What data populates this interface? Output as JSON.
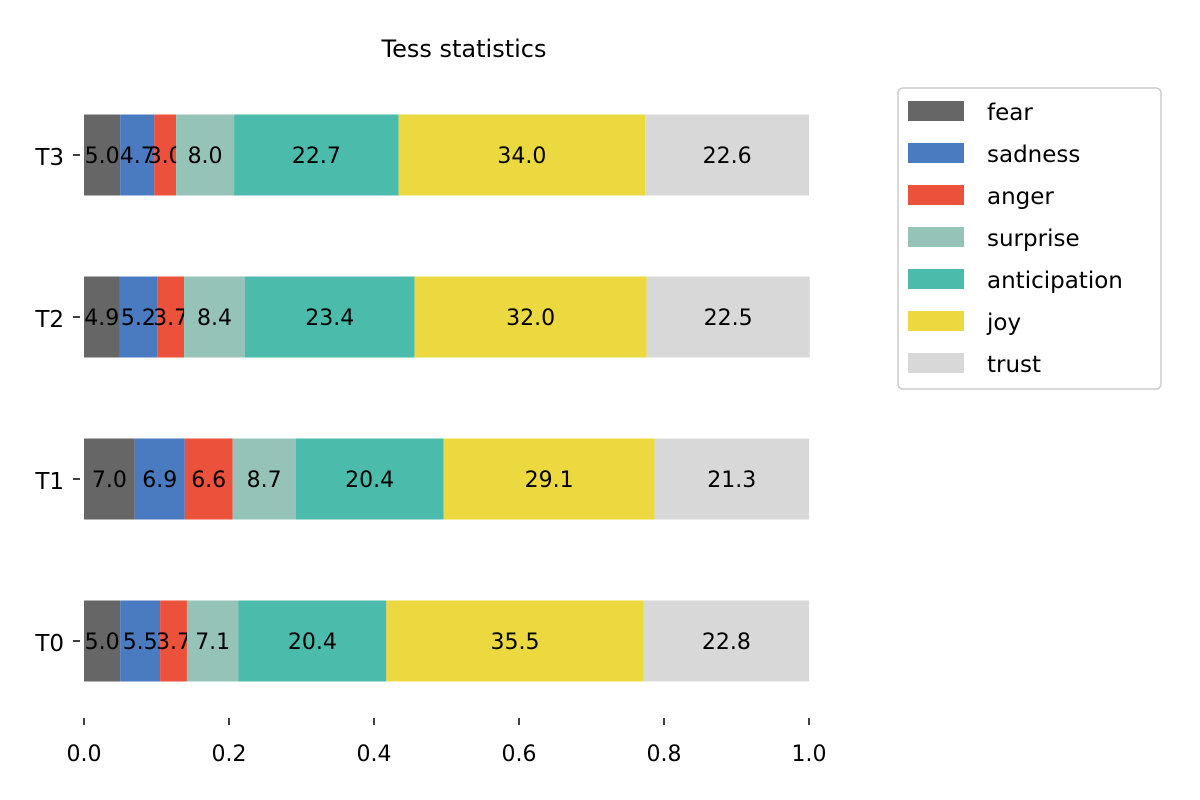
{
  "chart_data": {
    "type": "bar",
    "orientation": "horizontal",
    "stacked": true,
    "title": "Tess statistics",
    "xlabel": "",
    "ylabel": "",
    "xlim": [
      0,
      1
    ],
    "x_ticks": [
      "0.0",
      "0.2",
      "0.4",
      "0.6",
      "0.8",
      "1.0"
    ],
    "categories": [
      "T0",
      "T1",
      "T2",
      "T3"
    ],
    "series": [
      {
        "name": "fear",
        "color": "#666666",
        "values": [
          0.05,
          0.07,
          0.049,
          0.05
        ],
        "labels": [
          "5.0",
          "7.0",
          "4.9",
          "5.0"
        ]
      },
      {
        "name": "sadness",
        "color": "#4a7bc1",
        "values": [
          0.055,
          0.069,
          0.052,
          0.047
        ],
        "labels": [
          "5.5",
          "6.9",
          "5.2",
          "4.7"
        ]
      },
      {
        "name": "anger",
        "color": "#ec513b",
        "values": [
          0.037,
          0.066,
          0.037,
          0.03
        ],
        "labels": [
          "3.7",
          "6.6",
          "3.7",
          "3.0"
        ]
      },
      {
        "name": "surprise",
        "color": "#96c3b8",
        "values": [
          0.071,
          0.087,
          0.084,
          0.08
        ],
        "labels": [
          "7.1",
          "8.7",
          "8.4",
          "8.0"
        ]
      },
      {
        "name": "anticipation",
        "color": "#4bbbab",
        "values": [
          0.204,
          0.204,
          0.234,
          0.227
        ],
        "labels": [
          "20.4",
          "20.4",
          "23.4",
          "22.7"
        ]
      },
      {
        "name": "joy",
        "color": "#ecd93f",
        "values": [
          0.355,
          0.291,
          0.32,
          0.34
        ],
        "labels": [
          "35.5",
          "29.1",
          "32.0",
          "34.0"
        ]
      },
      {
        "name": "trust",
        "color": "#d8d8d8",
        "values": [
          0.228,
          0.213,
          0.225,
          0.226
        ],
        "labels": [
          "22.8",
          "21.3",
          "22.5",
          "22.6"
        ]
      }
    ],
    "legend_position": "outside-right-top",
    "grid": false
  }
}
